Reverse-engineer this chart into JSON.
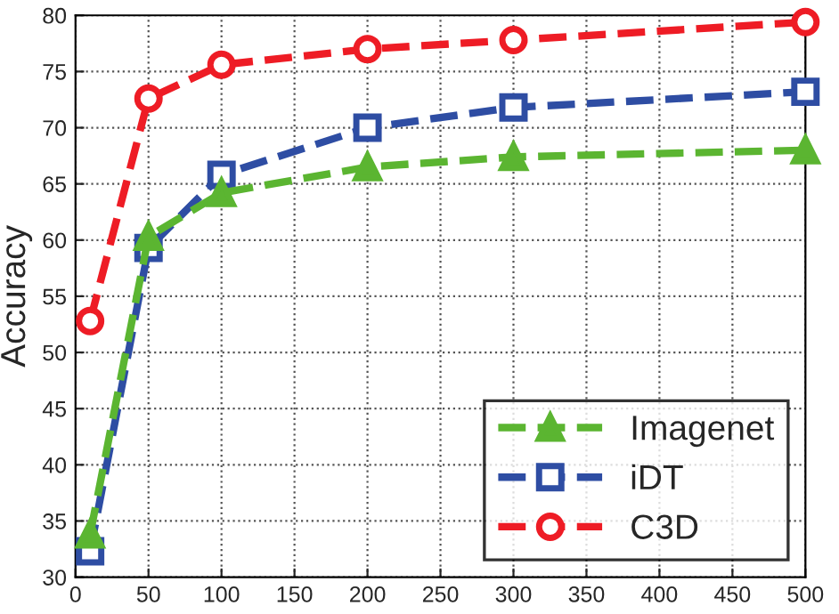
{
  "chart_data": {
    "type": "line",
    "ylabel": "Accuracy",
    "x": [
      10,
      50,
      100,
      200,
      300,
      500
    ],
    "series": [
      {
        "name": "Imagenet",
        "color": "#5bb531",
        "marker": "triangle",
        "values": [
          33.8,
          60.3,
          64.2,
          66.5,
          67.4,
          68.0
        ]
      },
      {
        "name": "iDT",
        "color": "#2e4da3",
        "marker": "square",
        "values": [
          32.3,
          59.3,
          65.8,
          70.0,
          71.8,
          73.2
        ]
      },
      {
        "name": "C3D",
        "color": "#ee1c25",
        "marker": "circle",
        "values": [
          52.8,
          72.6,
          75.6,
          77.0,
          77.8,
          79.4
        ]
      }
    ],
    "xlim": [
      0,
      500
    ],
    "xticks": [
      0,
      50,
      100,
      150,
      200,
      250,
      300,
      350,
      400,
      450,
      500
    ],
    "ylim": [
      30,
      80
    ],
    "yticks": [
      30,
      35,
      40,
      45,
      50,
      55,
      60,
      65,
      70,
      75,
      80
    ],
    "grid": true,
    "legend": "bottom right",
    "line_style": "dashed"
  }
}
